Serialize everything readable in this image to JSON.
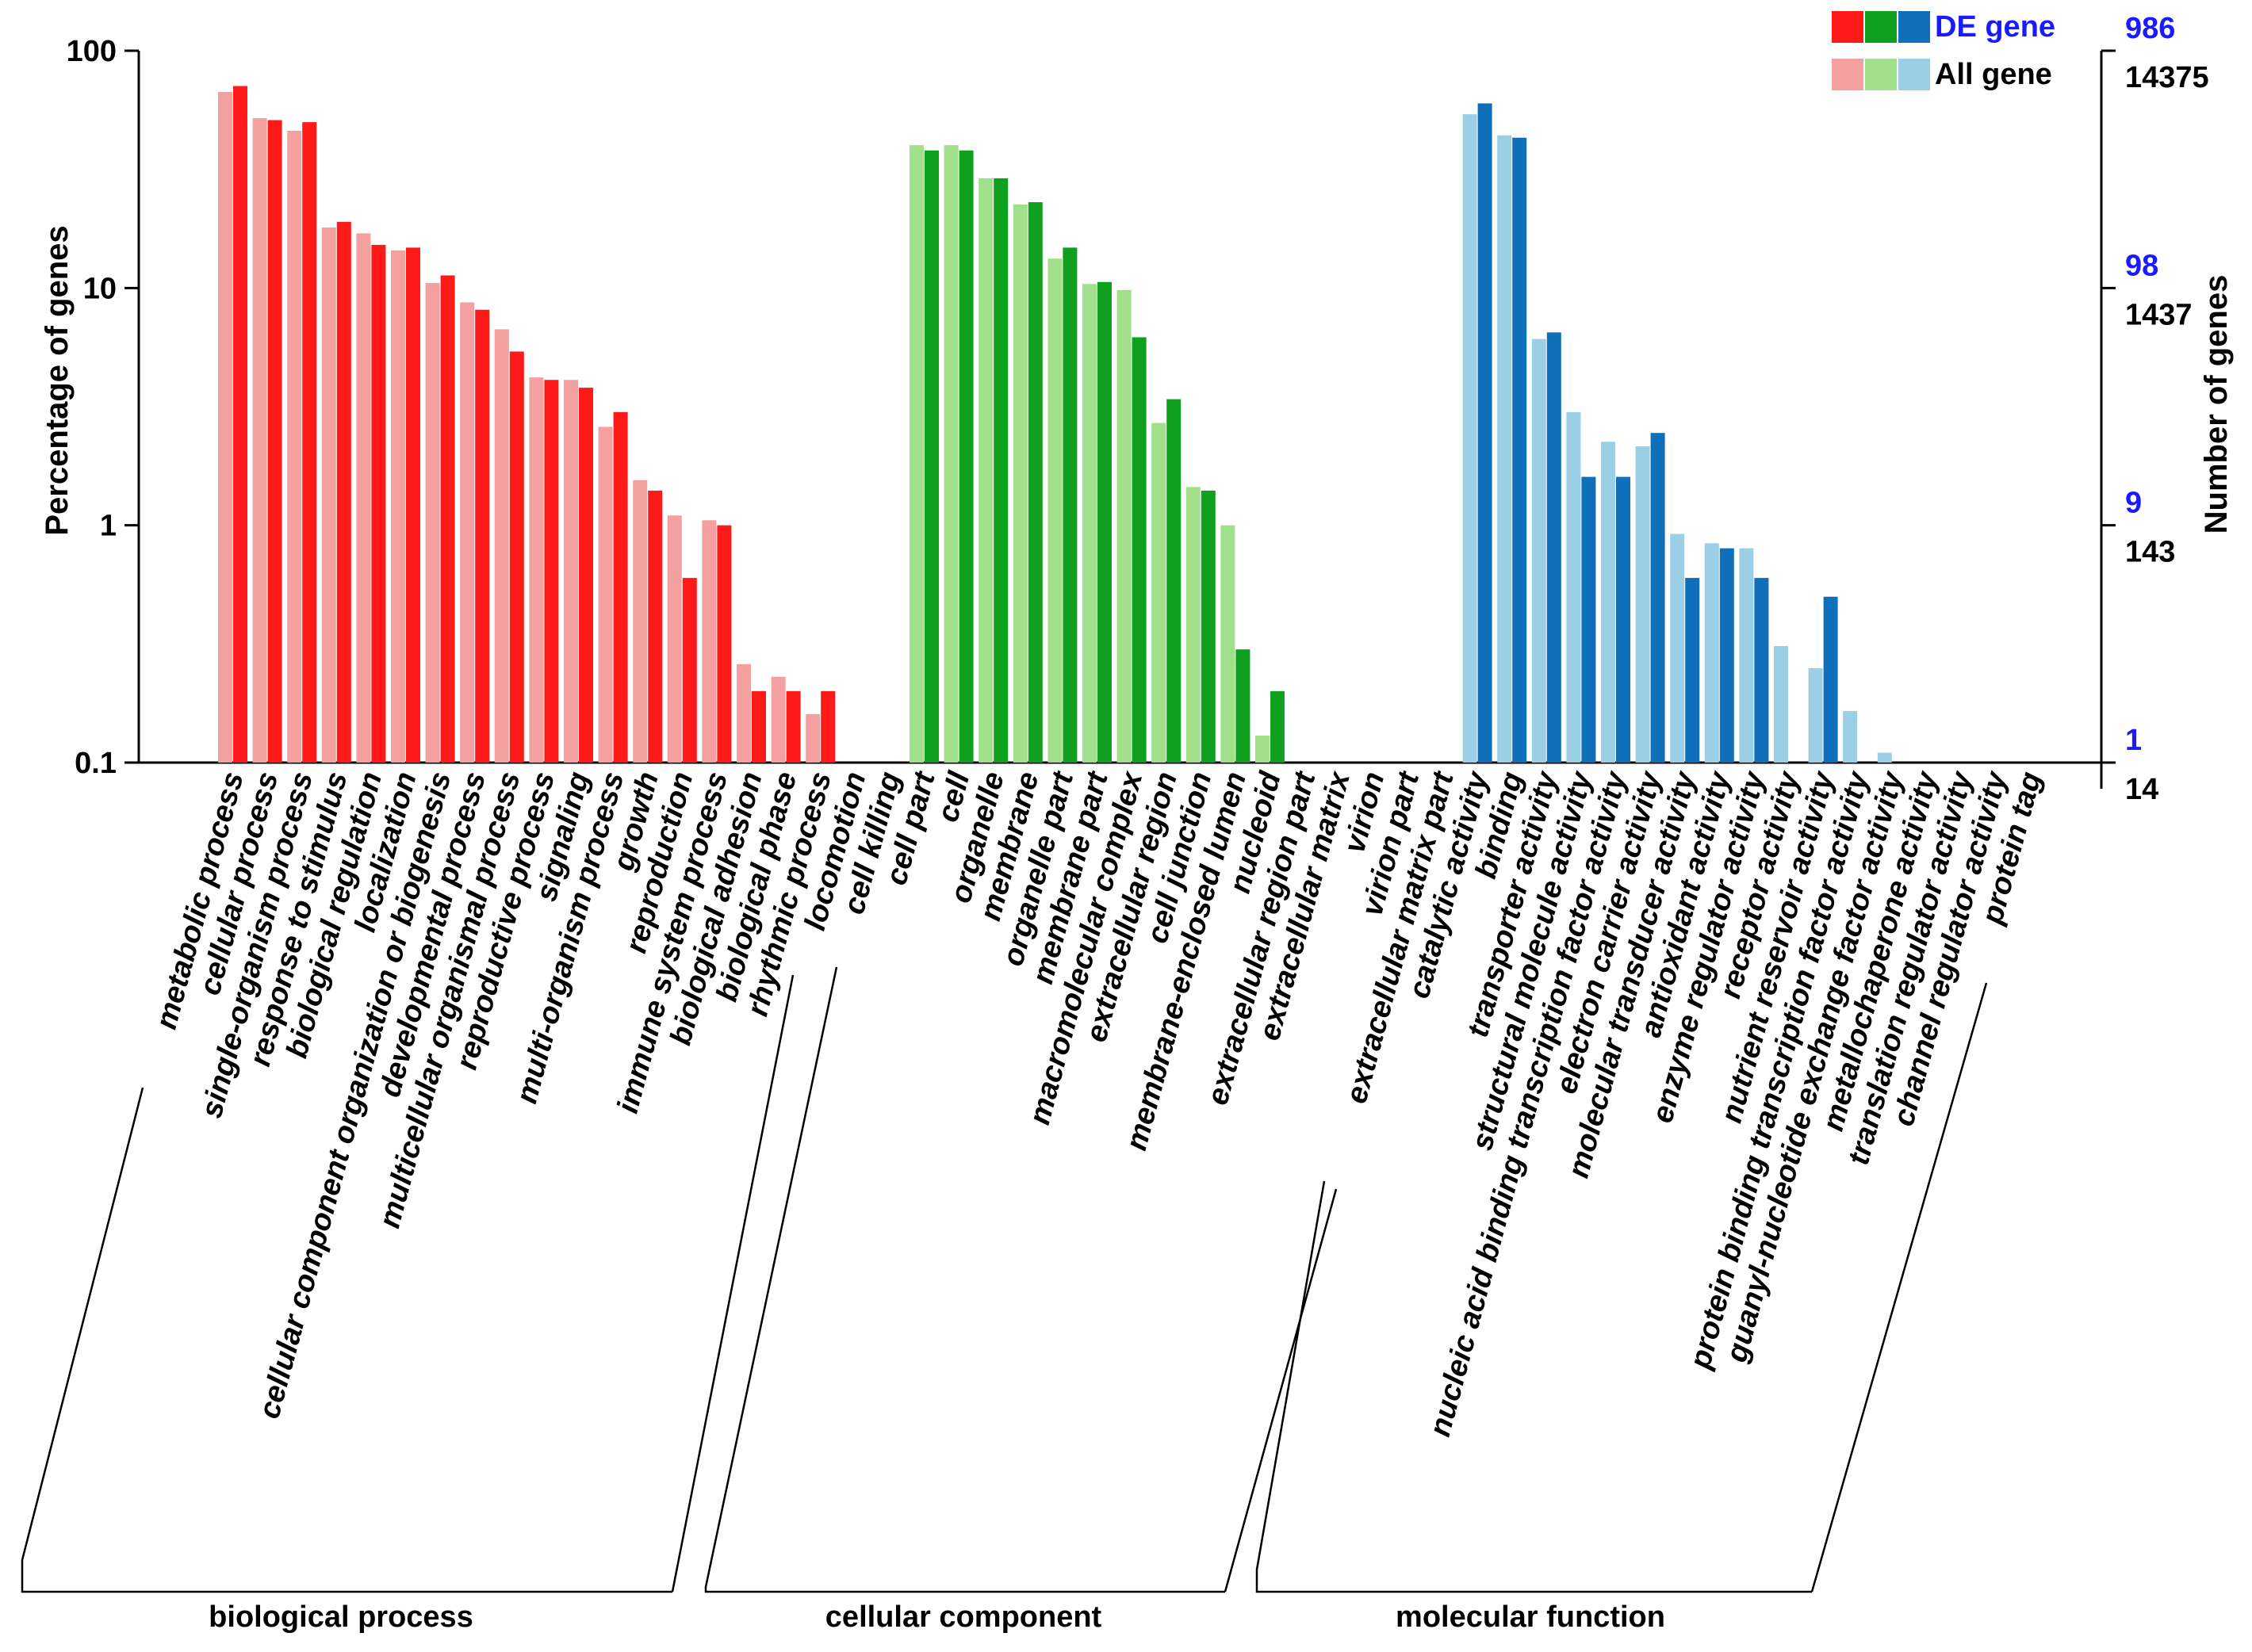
{
  "chart_data": {
    "type": "bar",
    "scale": "log",
    "ylabel": "Percentage of genes",
    "ylabel_right": "Number of genes",
    "ylim": [
      0.1,
      100
    ],
    "yticks": [
      "0.1",
      "1",
      "10",
      "100"
    ],
    "right_ticks_de": [
      "1",
      "9",
      "98",
      "986"
    ],
    "right_ticks_all": [
      "14",
      "143",
      "1437",
      "14375"
    ],
    "legend": {
      "de_label": "DE gene",
      "all_label": "All gene",
      "placement": "top-right"
    },
    "groups": [
      {
        "name": "biological process",
        "colors": {
          "de": "#ff1a1a",
          "all": "#f5a0a0"
        },
        "categories": [
          {
            "label": "metabolic process",
            "all": 67,
            "de": 71
          },
          {
            "label": "cellular process",
            "all": 52,
            "de": 51
          },
          {
            "label": "single-organism process",
            "all": 46,
            "de": 50
          },
          {
            "label": "response to stimulus",
            "all": 18,
            "de": 19
          },
          {
            "label": "biological regulation",
            "all": 17,
            "de": 15.2
          },
          {
            "label": "localization",
            "all": 14.4,
            "de": 14.8
          },
          {
            "label": "cellular component organization or biogenesis",
            "all": 10.5,
            "de": 11.3
          },
          {
            "label": "developmental process",
            "all": 8.7,
            "de": 8.1
          },
          {
            "label": "multicellular organismal process",
            "all": 6.7,
            "de": 5.4
          },
          {
            "label": "reproductive process",
            "all": 4.2,
            "de": 4.1
          },
          {
            "label": "signaling",
            "all": 4.1,
            "de": 3.8
          },
          {
            "label": "multi-organism process",
            "all": 2.6,
            "de": 3.0
          },
          {
            "label": "growth",
            "all": 1.55,
            "de": 1.4
          },
          {
            "label": "reproduction",
            "all": 1.1,
            "de": 0.6
          },
          {
            "label": "immune system process",
            "all": 1.05,
            "de": 1.0
          },
          {
            "label": "biological adhesion",
            "all": 0.26,
            "de": 0.2
          },
          {
            "label": "biological phase",
            "all": 0.23,
            "de": 0.2
          },
          {
            "label": "rhythmic process",
            "all": 0.16,
            "de": 0.2
          },
          {
            "label": "locomotion",
            "all": null,
            "de": null
          },
          {
            "label": "cell killing",
            "all": null,
            "de": null
          }
        ]
      },
      {
        "name": "cellular component",
        "colors": {
          "de": "#0fa020",
          "all": "#a0e08a"
        },
        "categories": [
          {
            "label": "cell part",
            "all": 40,
            "de": 38
          },
          {
            "label": "cell",
            "all": 40,
            "de": 38
          },
          {
            "label": "organelle",
            "all": 29,
            "de": 29
          },
          {
            "label": "membrane",
            "all": 22.5,
            "de": 23
          },
          {
            "label": "organelle part",
            "all": 13.3,
            "de": 14.8
          },
          {
            "label": "membrane part",
            "all": 10.4,
            "de": 10.6
          },
          {
            "label": "macromolecular complex",
            "all": 9.8,
            "de": 6.2
          },
          {
            "label": "extracellular region",
            "all": 2.7,
            "de": 3.4
          },
          {
            "label": "cell junction",
            "all": 1.45,
            "de": 1.4
          },
          {
            "label": "membrane-enclosed lumen",
            "all": 1.0,
            "de": 0.3
          },
          {
            "label": "nucleoid",
            "all": 0.13,
            "de": 0.2
          },
          {
            "label": "extracellular region part",
            "all": null,
            "de": null
          },
          {
            "label": "extracellular matrix",
            "all": null,
            "de": null
          },
          {
            "label": "virion",
            "all": null,
            "de": null
          },
          {
            "label": "virion part",
            "all": null,
            "de": null
          },
          {
            "label": "extracellular matrix part",
            "all": null,
            "de": null
          }
        ]
      },
      {
        "name": "molecular function",
        "colors": {
          "de": "#0f6fb8",
          "all": "#9bcfe6"
        },
        "categories": [
          {
            "label": "catalytic activity",
            "all": 54,
            "de": 60
          },
          {
            "label": "binding",
            "all": 44,
            "de": 43
          },
          {
            "label": "transporter activity",
            "all": 6.1,
            "de": 6.5
          },
          {
            "label": "structural molecule activity",
            "all": 3.0,
            "de": 1.6
          },
          {
            "label": "nucleic acid binding transcription factor activity",
            "all": 2.25,
            "de": 1.6
          },
          {
            "label": "electron carrier activity",
            "all": 2.15,
            "de": 2.45
          },
          {
            "label": "molecular transducer activity",
            "all": 0.92,
            "de": 0.6
          },
          {
            "label": "antioxidant activity",
            "all": 0.84,
            "de": 0.8
          },
          {
            "label": "enzyme regulator activity",
            "all": 0.8,
            "de": 0.6
          },
          {
            "label": "receptor activity",
            "all": 0.31,
            "de": null
          },
          {
            "label": "nutrient reservoir activity",
            "all": 0.25,
            "de": 0.5
          },
          {
            "label": "protein binding transcription factor activity",
            "all": 0.165,
            "de": null
          },
          {
            "label": "guanyl-nucleotide exchange factor activity",
            "all": 0.11,
            "de": null
          },
          {
            "label": "metallochaperone activity",
            "all": null,
            "de": null
          },
          {
            "label": "translation regulator activity",
            "all": null,
            "de": null
          },
          {
            "label": "channel regulator activity",
            "all": null,
            "de": null
          },
          {
            "label": "protein tag",
            "all": null,
            "de": null
          }
        ]
      }
    ]
  }
}
